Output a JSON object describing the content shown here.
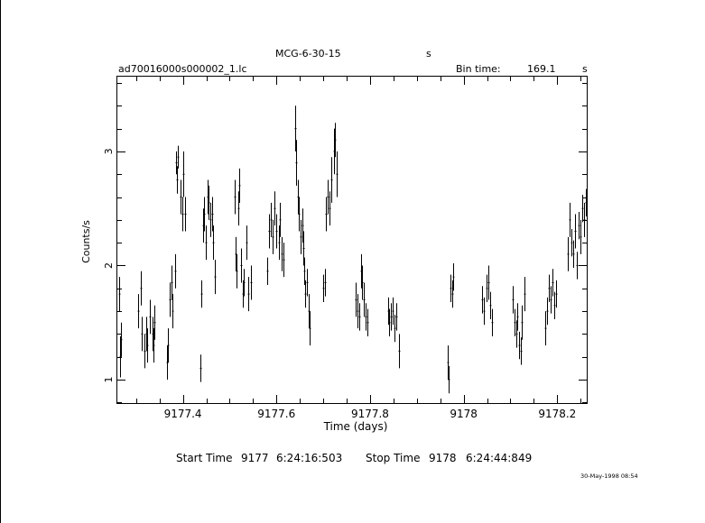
{
  "header": {
    "object": "MCG-6-30-15",
    "object_unit": "s",
    "file_name": "ad70016000s000002_1.lc",
    "bin_time_label": "Bin time:",
    "bin_time_value": "169.1",
    "bin_time_unit": "s"
  },
  "footer": {
    "start_label": "Start Time",
    "start_day": "9177",
    "start_clock": "6:24:16:503",
    "stop_label": "Stop Time",
    "stop_day": "9178",
    "stop_clock": "6:24:44:849",
    "print_date": "30-May-1998 08:54"
  },
  "chart_data": {
    "type": "scatter",
    "xlabel": "Time (days)",
    "ylabel": "Counts/s",
    "xlim": [
      9177.26,
      9178.263
    ],
    "ylim": [
      0.795,
      3.655
    ],
    "x_ticks": [
      {
        "value": 9177.4,
        "label": "9177.4"
      },
      {
        "value": 9177.6,
        "label": "9177.6"
      },
      {
        "value": 9177.8,
        "label": "9177.8"
      },
      {
        "value": 9178.0,
        "label": "9178"
      },
      {
        "value": 9178.2,
        "label": "9178.2"
      }
    ],
    "y_ticks": [
      {
        "value": 1,
        "label": "1"
      },
      {
        "value": 2,
        "label": "2"
      },
      {
        "value": 3,
        "label": "3"
      }
    ],
    "error_bars": true,
    "grid": false,
    "series": [
      {
        "points": [
          [
            9177.264,
            1.75,
            0.15
          ],
          [
            9177.266,
            1.2,
            0.18
          ],
          [
            9177.268,
            1.35,
            0.15
          ],
          [
            9177.305,
            1.6,
            0.15
          ],
          [
            9177.31,
            1.8,
            0.15
          ],
          [
            9177.312,
            1.4,
            0.15
          ],
          [
            9177.317,
            1.25,
            0.15
          ],
          [
            9177.322,
            1.4,
            0.15
          ],
          [
            9177.324,
            1.3,
            0.15
          ],
          [
            9177.33,
            1.55,
            0.15
          ],
          [
            9177.335,
            1.4,
            0.15
          ],
          [
            9177.338,
            1.3,
            0.15
          ],
          [
            9177.34,
            1.5,
            0.15
          ],
          [
            9177.366,
            1.15,
            0.15
          ],
          [
            9177.368,
            1.3,
            0.15
          ],
          [
            9177.372,
            1.7,
            0.15
          ],
          [
            9177.376,
            1.85,
            0.15
          ],
          [
            9177.378,
            1.6,
            0.15
          ],
          [
            9177.383,
            1.95,
            0.15
          ],
          [
            9177.386,
            2.9,
            0.1
          ],
          [
            9177.388,
            2.75,
            0.12
          ],
          [
            9177.39,
            2.95,
            0.1
          ],
          [
            9177.395,
            2.6,
            0.15
          ],
          [
            9177.398,
            2.45,
            0.15
          ],
          [
            9177.401,
            2.8,
            0.2
          ],
          [
            9177.405,
            2.45,
            0.15
          ],
          [
            9177.438,
            1.1,
            0.12
          ],
          [
            9177.44,
            1.75,
            0.12
          ],
          [
            9177.443,
            2.35,
            0.15
          ],
          [
            9177.446,
            2.45,
            0.15
          ],
          [
            9177.449,
            2.2,
            0.15
          ],
          [
            9177.452,
            2.6,
            0.15
          ],
          [
            9177.455,
            2.55,
            0.15
          ],
          [
            9177.458,
            2.4,
            0.15
          ],
          [
            9177.462,
            2.45,
            0.15
          ],
          [
            9177.465,
            2.2,
            0.15
          ],
          [
            9177.468,
            1.9,
            0.15
          ],
          [
            9177.51,
            2.6,
            0.15
          ],
          [
            9177.512,
            2.1,
            0.15
          ],
          [
            9177.515,
            1.95,
            0.15
          ],
          [
            9177.518,
            2.5,
            0.15
          ],
          [
            9177.52,
            2.7,
            0.15
          ],
          [
            9177.524,
            2.0,
            0.15
          ],
          [
            9177.528,
            1.75,
            0.12
          ],
          [
            9177.53,
            1.85,
            0.12
          ],
          [
            9177.535,
            2.2,
            0.15
          ],
          [
            9177.54,
            1.75,
            0.15
          ],
          [
            9177.545,
            1.85,
            0.15
          ],
          [
            9177.58,
            1.95,
            0.12
          ],
          [
            9177.585,
            2.3,
            0.15
          ],
          [
            9177.588,
            2.4,
            0.15
          ],
          [
            9177.592,
            2.25,
            0.15
          ],
          [
            9177.595,
            2.5,
            0.15
          ],
          [
            9177.6,
            2.3,
            0.15
          ],
          [
            9177.605,
            2.2,
            0.15
          ],
          [
            9177.608,
            2.4,
            0.15
          ],
          [
            9177.612,
            2.1,
            0.15
          ],
          [
            9177.615,
            2.05,
            0.15
          ],
          [
            9177.64,
            3.2,
            0.2
          ],
          [
            9177.642,
            2.9,
            0.2
          ],
          [
            9177.645,
            2.6,
            0.15
          ],
          [
            9177.648,
            2.45,
            0.15
          ],
          [
            9177.652,
            2.25,
            0.15
          ],
          [
            9177.655,
            2.35,
            0.15
          ],
          [
            9177.658,
            2.15,
            0.15
          ],
          [
            9177.66,
            1.95,
            0.12
          ],
          [
            9177.662,
            1.75,
            0.12
          ],
          [
            9177.665,
            1.85,
            0.12
          ],
          [
            9177.668,
            1.6,
            0.15
          ],
          [
            9177.67,
            1.45,
            0.15
          ],
          [
            9177.7,
            1.8,
            0.12
          ],
          [
            9177.703,
            1.85,
            0.12
          ],
          [
            9177.706,
            2.45,
            0.15
          ],
          [
            9177.71,
            2.6,
            0.15
          ],
          [
            9177.714,
            2.5,
            0.15
          ],
          [
            9177.718,
            2.75,
            0.2
          ],
          [
            9177.722,
            3.0,
            0.2
          ],
          [
            9177.725,
            3.1,
            0.15
          ],
          [
            9177.728,
            2.8,
            0.2
          ],
          [
            9177.77,
            1.7,
            0.15
          ],
          [
            9177.773,
            1.6,
            0.15
          ],
          [
            9177.776,
            1.55,
            0.12
          ],
          [
            9177.78,
            1.95,
            0.15
          ],
          [
            9177.783,
            1.85,
            0.15
          ],
          [
            9177.786,
            1.7,
            0.15
          ],
          [
            9177.79,
            1.55,
            0.12
          ],
          [
            9177.794,
            1.5,
            0.12
          ],
          [
            9177.838,
            1.6,
            0.12
          ],
          [
            9177.841,
            1.5,
            0.12
          ],
          [
            9177.844,
            1.55,
            0.12
          ],
          [
            9177.848,
            1.6,
            0.12
          ],
          [
            9177.852,
            1.45,
            0.12
          ],
          [
            9177.856,
            1.55,
            0.12
          ],
          [
            9177.862,
            1.25,
            0.15
          ],
          [
            9177.965,
            1.15,
            0.15
          ],
          [
            9177.968,
            1.0,
            0.12
          ],
          [
            9177.972,
            1.8,
            0.12
          ],
          [
            9177.975,
            1.75,
            0.12
          ],
          [
            9177.978,
            1.9,
            0.12
          ],
          [
            9178.04,
            1.7,
            0.12
          ],
          [
            9178.044,
            1.6,
            0.12
          ],
          [
            9178.048,
            1.8,
            0.12
          ],
          [
            9178.052,
            1.85,
            0.15
          ],
          [
            9178.056,
            1.65,
            0.12
          ],
          [
            9178.06,
            1.5,
            0.12
          ],
          [
            9178.105,
            1.7,
            0.12
          ],
          [
            9178.108,
            1.5,
            0.12
          ],
          [
            9178.112,
            1.4,
            0.12
          ],
          [
            9178.115,
            1.55,
            0.12
          ],
          [
            9178.118,
            1.3,
            0.12
          ],
          [
            9178.122,
            1.25,
            0.12
          ],
          [
            9178.125,
            1.5,
            0.15
          ],
          [
            9178.13,
            1.75,
            0.15
          ],
          [
            9178.175,
            1.45,
            0.15
          ],
          [
            9178.178,
            1.6,
            0.12
          ],
          [
            9178.182,
            1.8,
            0.12
          ],
          [
            9178.186,
            1.7,
            0.12
          ],
          [
            9178.19,
            1.85,
            0.12
          ],
          [
            9178.194,
            1.65,
            0.12
          ],
          [
            9178.198,
            1.75,
            0.12
          ],
          [
            9178.222,
            2.1,
            0.15
          ],
          [
            9178.226,
            2.4,
            0.15
          ],
          [
            9178.23,
            2.2,
            0.12
          ],
          [
            9178.234,
            2.1,
            0.12
          ],
          [
            9178.238,
            2.3,
            0.15
          ],
          [
            9178.242,
            2.0,
            0.12
          ],
          [
            9178.246,
            2.35,
            0.12
          ],
          [
            9178.25,
            2.25,
            0.15
          ],
          [
            9178.254,
            2.5,
            0.12
          ],
          [
            9178.258,
            2.4,
            0.15
          ],
          [
            9178.262,
            2.55,
            0.12
          ]
        ]
      }
    ]
  }
}
